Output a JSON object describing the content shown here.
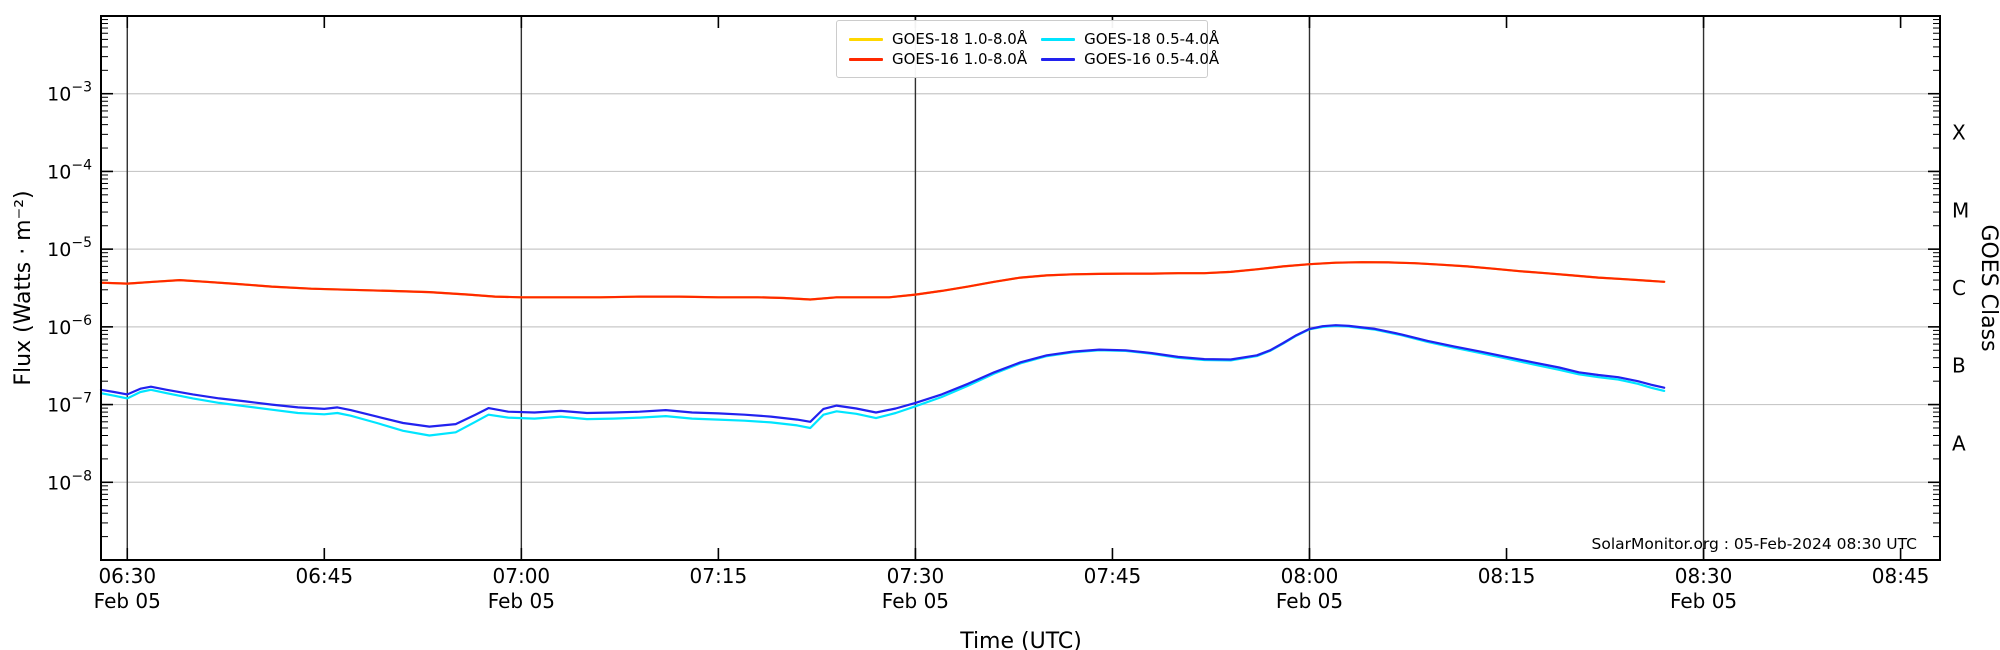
{
  "watermark": "SolarMonitor.org : 05-Feb-2024 08:30 UTC",
  "chart_data": {
    "type": "line",
    "title": "",
    "xlabel": "Time (UTC)",
    "ylabel": "Flux (Watts · m⁻²)",
    "ylabel_right": "GOES Class",
    "x_unit": "minutes after 06:00 UTC on 05-Feb-2024",
    "x_domain": [
      28,
      168
    ],
    "y_log_domain": [
      -9,
      -2
    ],
    "grid": {
      "h_color": "#c8c8c8",
      "v_color": "#2f2f2f"
    },
    "x_ticks": [
      {
        "t": 30,
        "label": "06:30",
        "date": "Feb 05"
      },
      {
        "t": 45,
        "label": "06:45"
      },
      {
        "t": 60,
        "label": "07:00",
        "date": "Feb 05"
      },
      {
        "t": 75,
        "label": "07:15"
      },
      {
        "t": 90,
        "label": "07:30",
        "date": "Feb 05"
      },
      {
        "t": 105,
        "label": "07:45"
      },
      {
        "t": 120,
        "label": "08:00",
        "date": "Feb 05"
      },
      {
        "t": 135,
        "label": "08:15"
      },
      {
        "t": 150,
        "label": "08:30",
        "date": "Feb 05"
      },
      {
        "t": 165,
        "label": "08:45"
      }
    ],
    "x_gridlines": [
      30,
      60,
      90,
      120,
      150
    ],
    "y_tick_exponents": [
      -3,
      -4,
      -5,
      -6,
      -7,
      -8
    ],
    "goes_class_labels": [
      {
        "label": "X",
        "exp": -3.5
      },
      {
        "label": "M",
        "exp": -4.5
      },
      {
        "label": "C",
        "exp": -5.5
      },
      {
        "label": "B",
        "exp": -6.5
      },
      {
        "label": "A",
        "exp": -7.5
      }
    ],
    "legend": [
      {
        "label": "GOES-18 1.0-8.0Å",
        "color": "#ffd700"
      },
      {
        "label": "GOES-18 0.5-4.0Å",
        "color": "#00e5ff"
      },
      {
        "label": "GOES-16 1.0-8.0Å",
        "color": "#ff2800"
      },
      {
        "label": "GOES-16 0.5-4.0Å",
        "color": "#2222ef"
      }
    ],
    "series": [
      {
        "name": "GOES-18 1.0-8.0Å",
        "color": "#ffd700",
        "points": [
          [
            28,
            3.7e-06
          ],
          [
            30,
            3.6e-06
          ],
          [
            32,
            3.8e-06
          ],
          [
            34,
            4e-06
          ],
          [
            36,
            3.8e-06
          ],
          [
            38,
            3.6e-06
          ],
          [
            41,
            3.3e-06
          ],
          [
            44,
            3.1e-06
          ],
          [
            47,
            3e-06
          ],
          [
            50,
            2.9e-06
          ],
          [
            53,
            2.8e-06
          ],
          [
            56,
            2.6e-06
          ],
          [
            58,
            2.45e-06
          ],
          [
            60,
            2.4e-06
          ],
          [
            63,
            2.4e-06
          ],
          [
            66,
            2.4e-06
          ],
          [
            69,
            2.45e-06
          ],
          [
            72,
            2.45e-06
          ],
          [
            75,
            2.4e-06
          ],
          [
            78,
            2.4e-06
          ],
          [
            80,
            2.35e-06
          ],
          [
            82,
            2.25e-06
          ],
          [
            84,
            2.4e-06
          ],
          [
            86,
            2.4e-06
          ],
          [
            88,
            2.4e-06
          ],
          [
            90,
            2.6e-06
          ],
          [
            92,
            2.9e-06
          ],
          [
            94,
            3.3e-06
          ],
          [
            96,
            3.8e-06
          ],
          [
            98,
            4.3e-06
          ],
          [
            100,
            4.6e-06
          ],
          [
            102,
            4.75e-06
          ],
          [
            104,
            4.8e-06
          ],
          [
            106,
            4.85e-06
          ],
          [
            108,
            4.85e-06
          ],
          [
            110,
            4.9e-06
          ],
          [
            112,
            4.9e-06
          ],
          [
            114,
            5.1e-06
          ],
          [
            116,
            5.5e-06
          ],
          [
            118,
            6e-06
          ],
          [
            120,
            6.4e-06
          ],
          [
            122,
            6.7e-06
          ],
          [
            124,
            6.8e-06
          ],
          [
            126,
            6.75e-06
          ],
          [
            128,
            6.6e-06
          ],
          [
            130,
            6.3e-06
          ],
          [
            132,
            6e-06
          ],
          [
            134,
            5.6e-06
          ],
          [
            136,
            5.2e-06
          ],
          [
            138,
            4.9e-06
          ],
          [
            140,
            4.6e-06
          ],
          [
            142,
            4.3e-06
          ],
          [
            144,
            4.1e-06
          ],
          [
            147,
            3.8e-06
          ]
        ]
      },
      {
        "name": "GOES-16 1.0-8.0Å",
        "color": "#ff2800",
        "points": [
          [
            28,
            3.7e-06
          ],
          [
            30,
            3.6e-06
          ],
          [
            32,
            3.8e-06
          ],
          [
            34,
            4e-06
          ],
          [
            36,
            3.8e-06
          ],
          [
            38,
            3.6e-06
          ],
          [
            41,
            3.3e-06
          ],
          [
            44,
            3.1e-06
          ],
          [
            47,
            3e-06
          ],
          [
            50,
            2.9e-06
          ],
          [
            53,
            2.8e-06
          ],
          [
            56,
            2.6e-06
          ],
          [
            58,
            2.45e-06
          ],
          [
            60,
            2.4e-06
          ],
          [
            63,
            2.4e-06
          ],
          [
            66,
            2.4e-06
          ],
          [
            69,
            2.45e-06
          ],
          [
            72,
            2.45e-06
          ],
          [
            75,
            2.4e-06
          ],
          [
            78,
            2.4e-06
          ],
          [
            80,
            2.35e-06
          ],
          [
            82,
            2.25e-06
          ],
          [
            84,
            2.4e-06
          ],
          [
            86,
            2.4e-06
          ],
          [
            88,
            2.4e-06
          ],
          [
            90,
            2.6e-06
          ],
          [
            92,
            2.9e-06
          ],
          [
            94,
            3.3e-06
          ],
          [
            96,
            3.8e-06
          ],
          [
            98,
            4.3e-06
          ],
          [
            100,
            4.6e-06
          ],
          [
            102,
            4.75e-06
          ],
          [
            104,
            4.8e-06
          ],
          [
            106,
            4.85e-06
          ],
          [
            108,
            4.85e-06
          ],
          [
            110,
            4.9e-06
          ],
          [
            112,
            4.9e-06
          ],
          [
            114,
            5.1e-06
          ],
          [
            116,
            5.5e-06
          ],
          [
            118,
            6e-06
          ],
          [
            120,
            6.4e-06
          ],
          [
            122,
            6.7e-06
          ],
          [
            124,
            6.8e-06
          ],
          [
            126,
            6.75e-06
          ],
          [
            128,
            6.6e-06
          ],
          [
            130,
            6.3e-06
          ],
          [
            132,
            6e-06
          ],
          [
            134,
            5.6e-06
          ],
          [
            136,
            5.2e-06
          ],
          [
            138,
            4.9e-06
          ],
          [
            140,
            4.6e-06
          ],
          [
            142,
            4.3e-06
          ],
          [
            144,
            4.1e-06
          ],
          [
            147,
            3.8e-06
          ]
        ]
      },
      {
        "name": "GOES-18 0.5-4.0Å",
        "color": "#00e5ff",
        "points": [
          [
            28,
            1.4e-07
          ],
          [
            29,
            1.3e-07
          ],
          [
            30,
            1.2e-07
          ],
          [
            31,
            1.45e-07
          ],
          [
            31.8,
            1.55e-07
          ],
          [
            33,
            1.4e-07
          ],
          [
            35,
            1.2e-07
          ],
          [
            37,
            1.05e-07
          ],
          [
            39,
            9.5e-08
          ],
          [
            41,
            8.6e-08
          ],
          [
            43,
            7.8e-08
          ],
          [
            45,
            7.5e-08
          ],
          [
            46,
            7.8e-08
          ],
          [
            47,
            7.2e-08
          ],
          [
            49,
            5.8e-08
          ],
          [
            51,
            4.6e-08
          ],
          [
            53,
            4e-08
          ],
          [
            55,
            4.4e-08
          ],
          [
            56.5,
            6e-08
          ],
          [
            57.5,
            7.4e-08
          ],
          [
            59,
            6.8e-08
          ],
          [
            61,
            6.6e-08
          ],
          [
            63,
            7e-08
          ],
          [
            65,
            6.5e-08
          ],
          [
            67,
            6.6e-08
          ],
          [
            69,
            6.8e-08
          ],
          [
            71,
            7.1e-08
          ],
          [
            73,
            6.6e-08
          ],
          [
            75,
            6.4e-08
          ],
          [
            77,
            6.2e-08
          ],
          [
            79,
            5.9e-08
          ],
          [
            81,
            5.4e-08
          ],
          [
            82,
            5e-08
          ],
          [
            83,
            7.4e-08
          ],
          [
            84,
            8.2e-08
          ],
          [
            85.5,
            7.6e-08
          ],
          [
            87,
            6.7e-08
          ],
          [
            88.5,
            7.8e-08
          ],
          [
            90,
            9.5e-08
          ],
          [
            92,
            1.25e-07
          ],
          [
            94,
            1.75e-07
          ],
          [
            96,
            2.5e-07
          ],
          [
            98,
            3.4e-07
          ],
          [
            100,
            4.2e-07
          ],
          [
            102,
            4.7e-07
          ],
          [
            104,
            5e-07
          ],
          [
            106,
            4.9e-07
          ],
          [
            108,
            4.5e-07
          ],
          [
            110,
            4e-07
          ],
          [
            112,
            3.75e-07
          ],
          [
            114,
            3.7e-07
          ],
          [
            116,
            4.2e-07
          ],
          [
            117,
            4.9e-07
          ],
          [
            118,
            6.1e-07
          ],
          [
            119,
            7.7e-07
          ],
          [
            120,
            9.3e-07
          ],
          [
            121,
            1e-06
          ],
          [
            122,
            1.03e-06
          ],
          [
            123,
            1.01e-06
          ],
          [
            125,
            9.2e-07
          ],
          [
            127,
            7.8e-07
          ],
          [
            129,
            6.4e-07
          ],
          [
            131,
            5.4e-07
          ],
          [
            133,
            4.6e-07
          ],
          [
            135,
            3.9e-07
          ],
          [
            137,
            3.3e-07
          ],
          [
            139,
            2.8e-07
          ],
          [
            140.5,
            2.45e-07
          ],
          [
            142,
            2.25e-07
          ],
          [
            143.5,
            2.1e-07
          ],
          [
            145,
            1.85e-07
          ],
          [
            146,
            1.65e-07
          ],
          [
            147,
            1.5e-07
          ]
        ]
      },
      {
        "name": "GOES-16 0.5-4.0Å",
        "color": "#2222ef",
        "points": [
          [
            28,
            1.55e-07
          ],
          [
            29,
            1.45e-07
          ],
          [
            30,
            1.35e-07
          ],
          [
            31,
            1.6e-07
          ],
          [
            31.8,
            1.7e-07
          ],
          [
            33,
            1.55e-07
          ],
          [
            35,
            1.35e-07
          ],
          [
            37,
            1.2e-07
          ],
          [
            39,
            1.1e-07
          ],
          [
            41,
            1e-07
          ],
          [
            43,
            9.2e-08
          ],
          [
            45,
            8.8e-08
          ],
          [
            46,
            9.2e-08
          ],
          [
            47,
            8.5e-08
          ],
          [
            49,
            7e-08
          ],
          [
            51,
            5.8e-08
          ],
          [
            53,
            5.2e-08
          ],
          [
            55,
            5.6e-08
          ],
          [
            56.5,
            7.4e-08
          ],
          [
            57.5,
            9e-08
          ],
          [
            59,
            8.1e-08
          ],
          [
            61,
            7.9e-08
          ],
          [
            63,
            8.3e-08
          ],
          [
            65,
            7.8e-08
          ],
          [
            67,
            7.9e-08
          ],
          [
            69,
            8.1e-08
          ],
          [
            71,
            8.5e-08
          ],
          [
            73,
            7.9e-08
          ],
          [
            75,
            7.7e-08
          ],
          [
            77,
            7.4e-08
          ],
          [
            79,
            7e-08
          ],
          [
            81,
            6.4e-08
          ],
          [
            82,
            6e-08
          ],
          [
            83,
            8.8e-08
          ],
          [
            84,
            9.7e-08
          ],
          [
            85.5,
            8.9e-08
          ],
          [
            87,
            7.9e-08
          ],
          [
            88.5,
            8.9e-08
          ],
          [
            90,
            1.05e-07
          ],
          [
            92,
            1.35e-07
          ],
          [
            94,
            1.85e-07
          ],
          [
            96,
            2.6e-07
          ],
          [
            98,
            3.5e-07
          ],
          [
            100,
            4.3e-07
          ],
          [
            102,
            4.8e-07
          ],
          [
            104,
            5.1e-07
          ],
          [
            106,
            5e-07
          ],
          [
            108,
            4.6e-07
          ],
          [
            110,
            4.1e-07
          ],
          [
            112,
            3.85e-07
          ],
          [
            114,
            3.8e-07
          ],
          [
            116,
            4.3e-07
          ],
          [
            117,
            5e-07
          ],
          [
            118,
            6.2e-07
          ],
          [
            119,
            7.8e-07
          ],
          [
            120,
            9.4e-07
          ],
          [
            121,
            1.02e-06
          ],
          [
            122,
            1.05e-06
          ],
          [
            123,
            1.03e-06
          ],
          [
            125,
            9.4e-07
          ],
          [
            127,
            8e-07
          ],
          [
            129,
            6.6e-07
          ],
          [
            131,
            5.6e-07
          ],
          [
            133,
            4.8e-07
          ],
          [
            135,
            4.1e-07
          ],
          [
            137,
            3.5e-07
          ],
          [
            139,
            3e-07
          ],
          [
            140.5,
            2.6e-07
          ],
          [
            142,
            2.4e-07
          ],
          [
            143.5,
            2.25e-07
          ],
          [
            145,
            2e-07
          ],
          [
            146,
            1.8e-07
          ],
          [
            147,
            1.65e-07
          ]
        ]
      }
    ]
  }
}
